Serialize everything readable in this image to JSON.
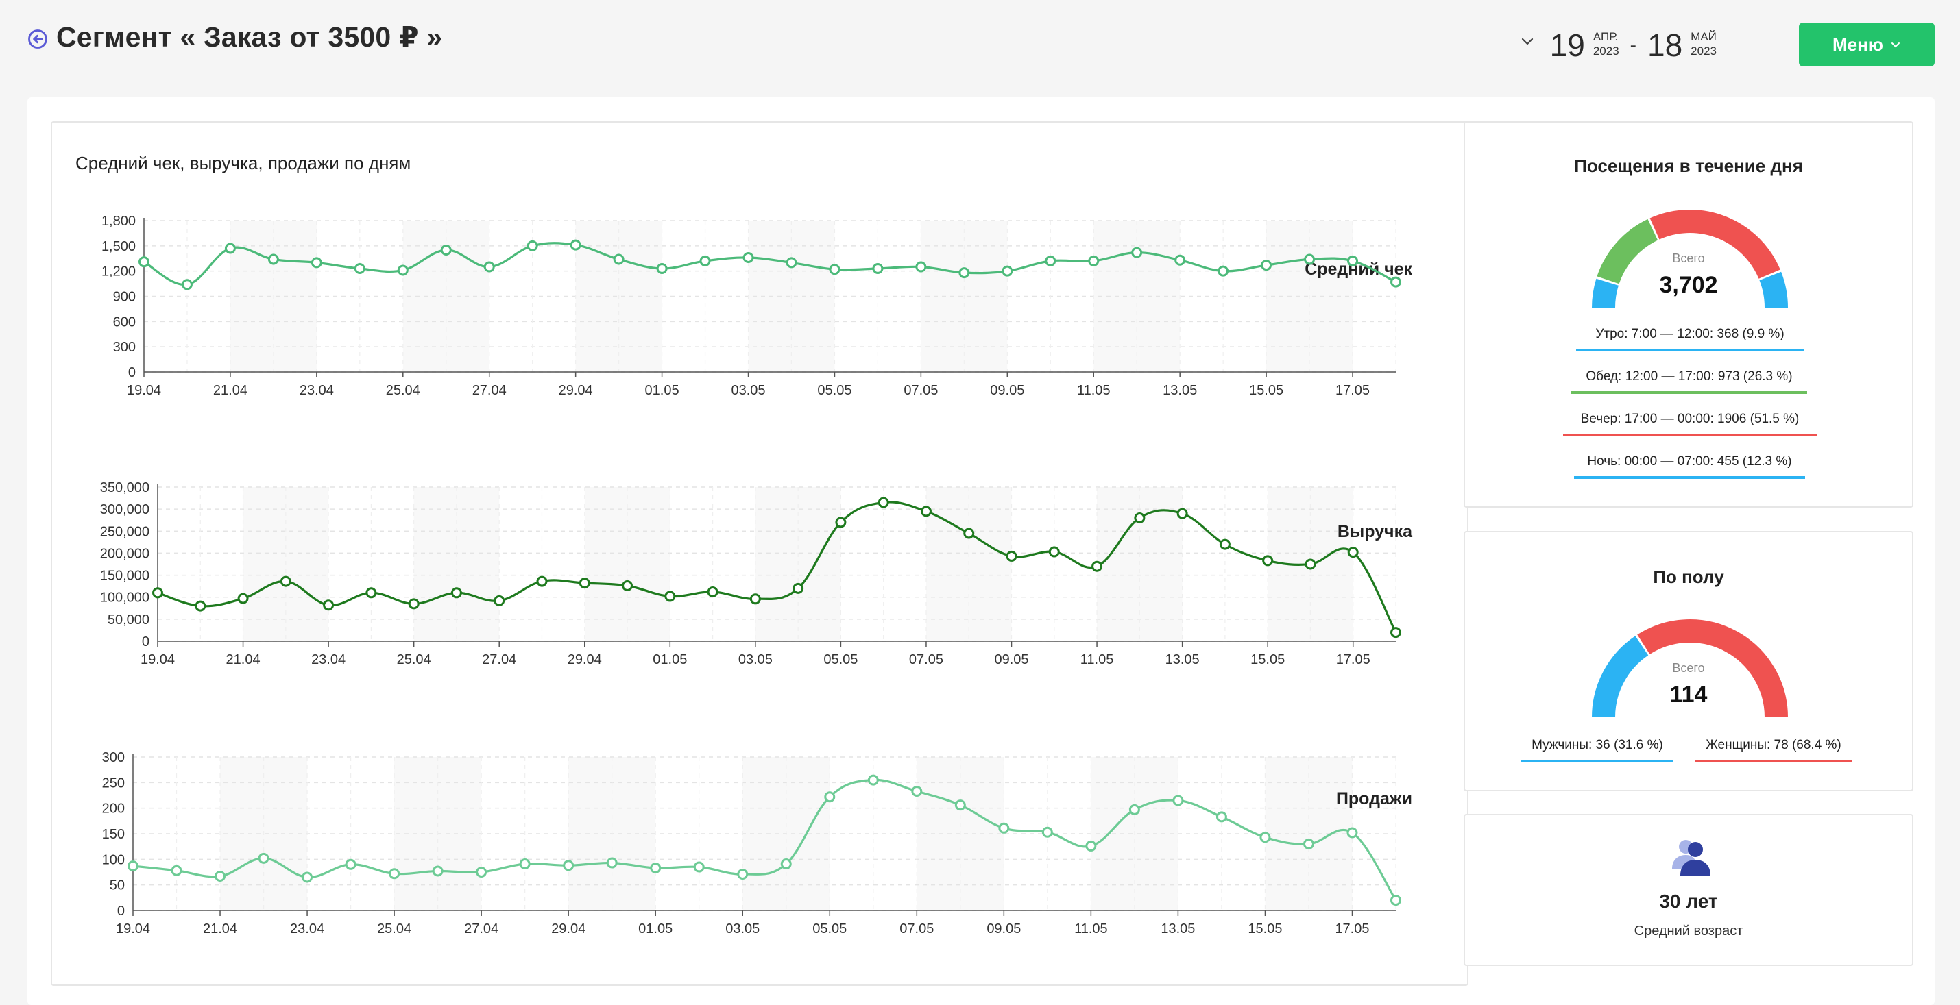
{
  "header": {
    "title": "Сегмент « Заказ от 3500 ₽ »",
    "date_from": {
      "day": "19",
      "month": "АПР.",
      "year": "2023"
    },
    "date_sep": "-",
    "date_to": {
      "day": "18",
      "month": "МАЙ",
      "year": "2023"
    },
    "menu_label": "Меню"
  },
  "chart_section": {
    "title": "Средний чек, выручка, продажи по дням"
  },
  "chart_data": [
    {
      "type": "line",
      "title": "Средний чек",
      "color": "#4cba7a",
      "fill": "#ffffff",
      "x": [
        "19.04",
        "20.04",
        "21.04",
        "22.04",
        "23.04",
        "24.04",
        "25.04",
        "26.04",
        "27.04",
        "28.04",
        "29.04",
        "30.04",
        "01.05",
        "02.05",
        "03.05",
        "04.05",
        "05.05",
        "06.05",
        "07.05",
        "08.05",
        "09.05",
        "10.05",
        "11.05",
        "12.05",
        "13.05",
        "14.05",
        "15.05",
        "16.05",
        "17.05",
        "18.05"
      ],
      "x_ticks": [
        "19.04",
        "21.04",
        "23.04",
        "25.04",
        "27.04",
        "29.04",
        "01.05",
        "03.05",
        "05.05",
        "07.05",
        "09.05",
        "11.05",
        "13.05",
        "15.05",
        "17.05"
      ],
      "values": [
        1310,
        1040,
        1470,
        1340,
        1300,
        1230,
        1210,
        1450,
        1250,
        1500,
        1510,
        1340,
        1230,
        1320,
        1360,
        1300,
        1220,
        1230,
        1250,
        1180,
        1200,
        1320,
        1320,
        1420,
        1330,
        1200,
        1270,
        1340,
        1320,
        1070
      ],
      "ylim": [
        0,
        1800
      ],
      "y_ticks": [
        0,
        300,
        600,
        900,
        1200,
        1500,
        1800
      ],
      "y_tick_labels": [
        "0",
        "300",
        "600",
        "900",
        "1,200",
        "1,500",
        "1,800"
      ]
    },
    {
      "type": "line",
      "title": "Выручка",
      "color": "#1e7a1e",
      "fill": "#ffffff",
      "x": [
        "19.04",
        "20.04",
        "21.04",
        "22.04",
        "23.04",
        "24.04",
        "25.04",
        "26.04",
        "27.04",
        "28.04",
        "29.04",
        "30.04",
        "01.05",
        "02.05",
        "03.05",
        "04.05",
        "05.05",
        "06.05",
        "07.05",
        "08.05",
        "09.05",
        "10.05",
        "11.05",
        "12.05",
        "13.05",
        "14.05",
        "15.05",
        "16.05",
        "17.05",
        "18.05"
      ],
      "x_ticks": [
        "19.04",
        "21.04",
        "23.04",
        "25.04",
        "27.04",
        "29.04",
        "01.05",
        "03.05",
        "05.05",
        "07.05",
        "09.05",
        "11.05",
        "13.05",
        "15.05",
        "17.05"
      ],
      "values": [
        110000,
        80000,
        97000,
        136000,
        82000,
        110000,
        85000,
        110000,
        92000,
        136000,
        132000,
        126000,
        102000,
        112000,
        96000,
        120000,
        270000,
        315000,
        295000,
        245000,
        193000,
        203000,
        170000,
        280000,
        290000,
        220000,
        183000,
        175000,
        202000,
        20000
      ],
      "ylim": [
        0,
        350000
      ],
      "y_ticks": [
        0,
        50000,
        100000,
        150000,
        200000,
        250000,
        300000,
        350000
      ],
      "y_tick_labels": [
        "0",
        "50,000",
        "100,000",
        "150,000",
        "200,000",
        "250,000",
        "300,000",
        "350,000"
      ]
    },
    {
      "type": "line",
      "title": "Продажи",
      "color": "#6dcb95",
      "fill": "#ffffff",
      "x": [
        "19.04",
        "20.04",
        "21.04",
        "22.04",
        "23.04",
        "24.04",
        "25.04",
        "26.04",
        "27.04",
        "28.04",
        "29.04",
        "30.04",
        "01.05",
        "02.05",
        "03.05",
        "04.05",
        "05.05",
        "06.05",
        "07.05",
        "08.05",
        "09.05",
        "10.05",
        "11.05",
        "12.05",
        "13.05",
        "14.05",
        "15.05",
        "16.05",
        "17.05",
        "18.05"
      ],
      "x_ticks": [
        "19.04",
        "21.04",
        "23.04",
        "25.04",
        "27.04",
        "29.04",
        "01.05",
        "03.05",
        "05.05",
        "07.05",
        "09.05",
        "11.05",
        "13.05",
        "15.05",
        "17.05"
      ],
      "values": [
        87,
        78,
        67,
        102,
        65,
        90,
        72,
        77,
        75,
        91,
        88,
        93,
        83,
        85,
        71,
        91,
        222,
        255,
        233,
        206,
        161,
        153,
        126,
        197,
        215,
        183,
        143,
        130,
        152,
        20
      ],
      "ylim": [
        0,
        300
      ],
      "y_ticks": [
        0,
        50,
        100,
        150,
        200,
        250,
        300
      ],
      "y_tick_labels": [
        "0",
        "50",
        "100",
        "150",
        "200",
        "250",
        "300"
      ]
    }
  ],
  "visits": {
    "title": "Посещения в течение дня",
    "gauge_label": "Всего",
    "total": "3,702",
    "segments": [
      {
        "label": "Утро: 7:00 — 12:00: 368 (9.9 %)",
        "value": 368,
        "color": "#2bb3f3"
      },
      {
        "label": "Обед: 12:00 — 17:00: 973 (26.3 %)",
        "value": 973,
        "color": "#6cbf5e"
      },
      {
        "label": "Вечер: 17:00 — 00:00: 1906 (51.5 %)",
        "value": 1906,
        "color": "#ef5250"
      },
      {
        "label": "Ночь: 00:00 — 07:00: 455 (12.3 %)",
        "value": 455,
        "color": "#2bb3f3"
      }
    ]
  },
  "gender": {
    "title": "По полу",
    "gauge_label": "Всего",
    "total": "114",
    "segments": [
      {
        "label": "Мужчины: 36 (31.6 %)",
        "value": 36,
        "color": "#2bb3f3"
      },
      {
        "label": "Женщины: 78 (68.4 %)",
        "value": 78,
        "color": "#ef5250"
      }
    ]
  },
  "age": {
    "icon": "users-icon",
    "value": "30 лет",
    "caption": "Средний возраст"
  }
}
